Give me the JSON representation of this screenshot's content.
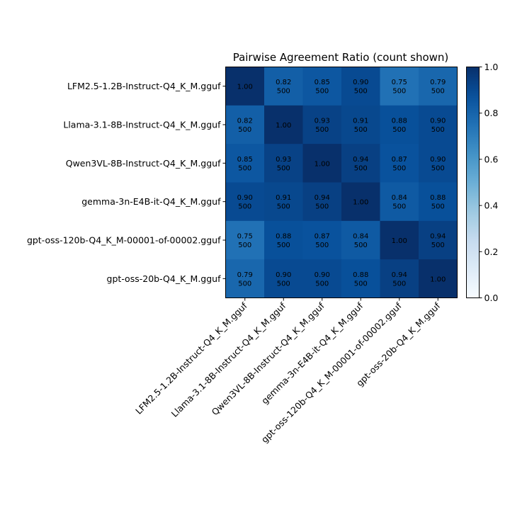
{
  "chart_data": {
    "type": "heatmap",
    "title": "Pairwise Agreement Ratio (count shown)",
    "xlabel": "",
    "ylabel": "",
    "row_labels": [
      "LFM2.5-1.2B-Instruct-Q4_K_M.gguf",
      "Llama-3.1-8B-Instruct-Q4_K_M.gguf",
      "Qwen3VL-8B-Instruct-Q4_K_M.gguf",
      "gemma-3n-E4B-it-Q4_K_M.gguf",
      "gpt-oss-120b-Q4_K_M-00001-of-00002.gguf",
      "gpt-oss-20b-Q4_K_M.gguf"
    ],
    "col_labels": [
      "LFM2.5-1.2B-Instruct-Q4_K_M.gguf",
      "Llama-3.1-8B-Instruct-Q4_K_M.gguf",
      "Qwen3VL-8B-Instruct-Q4_K_M.gguf",
      "gemma-3n-E4B-it-Q4_K_M.gguf",
      "gpt-oss-120b-Q4_K_M-00001-of-00002.gguf",
      "gpt-oss-20b-Q4_K_M.gguf"
    ],
    "values": [
      [
        1.0,
        0.82,
        0.85,
        0.9,
        0.75,
        0.79
      ],
      [
        0.82,
        1.0,
        0.93,
        0.91,
        0.88,
        0.9
      ],
      [
        0.85,
        0.93,
        1.0,
        0.94,
        0.87,
        0.9
      ],
      [
        0.9,
        0.91,
        0.94,
        1.0,
        0.84,
        0.88
      ],
      [
        0.75,
        0.88,
        0.87,
        0.84,
        1.0,
        0.94
      ],
      [
        0.79,
        0.9,
        0.9,
        0.88,
        0.94,
        1.0
      ]
    ],
    "counts": [
      [
        null,
        500,
        500,
        500,
        500,
        500
      ],
      [
        500,
        null,
        500,
        500,
        500,
        500
      ],
      [
        500,
        500,
        null,
        500,
        500,
        500
      ],
      [
        500,
        500,
        500,
        null,
        500,
        500
      ],
      [
        500,
        500,
        500,
        500,
        null,
        500
      ],
      [
        500,
        500,
        500,
        500,
        500,
        null
      ]
    ],
    "colormap": "Blues",
    "vmin": 0.0,
    "vmax": 1.0,
    "colorbar": {
      "ticks": [
        0.0,
        0.2,
        0.4,
        0.6,
        0.8,
        1.0
      ],
      "tick_labels": [
        "0.0",
        "0.2",
        "0.4",
        "0.6",
        "0.8",
        "1.0"
      ],
      "placement": "right"
    },
    "grid": false,
    "x_tick_rotation_deg": 45
  }
}
